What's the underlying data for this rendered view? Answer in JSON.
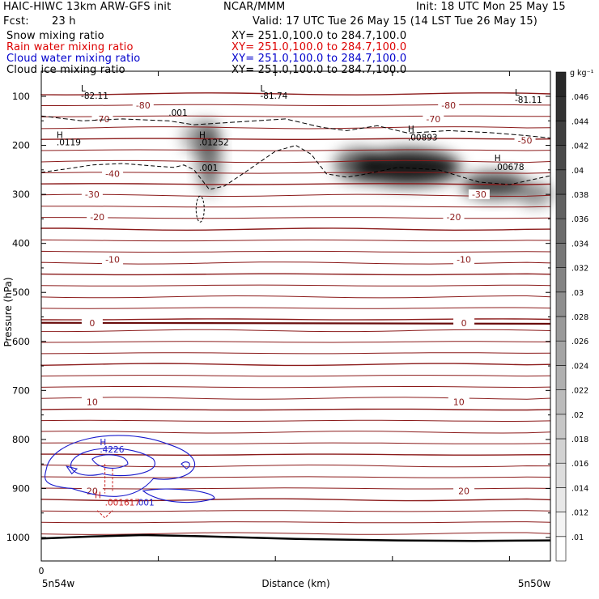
{
  "header": {
    "title_left": "HAIC-HIWC 13km ARW-GFS init",
    "org": "NCAR/MMM",
    "init": "Init: 18 UTC Mon 25 May 15",
    "fcst_label": "Fcst:",
    "fcst_value": "23 h",
    "valid": "Valid: 17 UTC Tue 26 May 15 (14 LST Tue 26 May 15)"
  },
  "fields": [
    {
      "name": "Snow mixing ratio",
      "xy": "XY= 251.0,100.0 to 284.7,100.0",
      "color": "#000000"
    },
    {
      "name": "Rain water mixing ratio",
      "xy": "XY= 251.0,100.0 to 284.7,100.0",
      "color": "#dd0000"
    },
    {
      "name": "Cloud water mixing ratio",
      "xy": "XY= 251.0,100.0 to 284.7,100.0",
      "color": "#0000cc"
    },
    {
      "name": "Cloud ice mixing ratio",
      "xy": "XY= 251.0,100.0 to 284.7,100.0",
      "color": "#000000"
    }
  ],
  "colors": {
    "temp_contour": "#8b1a1a",
    "cloud_water": "#1a1acc",
    "rain": "#cc2222",
    "snow_ice": "#000000"
  },
  "chart_data": {
    "type": "contour",
    "ylabel": "Pressure (hPa)",
    "xlabel": "Distance (km)",
    "x_start_label": "5n54w",
    "x_end_label": "5n50w",
    "x_zero_label": "0",
    "y_ticks": [
      100,
      200,
      300,
      400,
      500,
      600,
      700,
      800,
      900,
      1000
    ],
    "ylim": [
      1050,
      50
    ],
    "colorbar": {
      "unit": "g kg⁻¹",
      "levels": [
        ".01",
        ".012",
        ".014",
        ".016",
        ".018",
        ".02",
        ".022",
        ".024",
        ".026",
        ".028",
        ".03",
        ".032",
        ".034",
        ".036",
        ".038",
        ".04",
        ".042",
        ".044",
        ".046"
      ]
    },
    "isotherms": [
      {
        "level": -80,
        "p": 118,
        "label": "-80"
      },
      {
        "level": -70,
        "p": 146,
        "label": "-70"
      },
      {
        "level": -50,
        "p": 190,
        "label": "-50"
      },
      {
        "level": -40,
        "p": 258,
        "label": "-40"
      },
      {
        "level": -30,
        "p": 300,
        "label": "-30"
      },
      {
        "level": -20,
        "p": 346,
        "label": "-20"
      },
      {
        "level": -10,
        "p": 433,
        "label": "-10"
      },
      {
        "level": 0,
        "p": 562,
        "label": "0"
      },
      {
        "level": 10,
        "p": 723,
        "label": "10"
      },
      {
        "level": 20,
        "p": 905,
        "label": "20"
      }
    ],
    "annotations": [
      {
        "text": "L",
        "x": 0.078,
        "p": 90
      },
      {
        "text": "-82.11",
        "x": 0.078,
        "p": 105
      },
      {
        "text": "L",
        "x": 0.43,
        "p": 90
      },
      {
        "text": "-81.74",
        "x": 0.43,
        "p": 105
      },
      {
        "text": "L",
        "x": 0.93,
        "p": 98
      },
      {
        "text": "-81.11",
        "x": 0.93,
        "p": 113
      },
      {
        "text": "H",
        "x": 0.03,
        "p": 185
      },
      {
        "text": ".0119",
        "x": 0.03,
        "p": 200
      },
      {
        "text": "H",
        "x": 0.31,
        "p": 185
      },
      {
        "text": ".01252",
        "x": 0.31,
        "p": 200
      },
      {
        "text": "H",
        "x": 0.72,
        "p": 173
      },
      {
        "text": ".00893",
        "x": 0.72,
        "p": 190
      },
      {
        "text": "H",
        "x": 0.89,
        "p": 232
      },
      {
        "text": ".00678",
        "x": 0.89,
        "p": 250
      },
      {
        "text": ".001",
        "x": 0.25,
        "p": 140
      },
      {
        "text": ".001",
        "x": 0.31,
        "p": 252
      },
      {
        "text": "H",
        "x": 0.115,
        "p": 812
      },
      {
        "text": ".4226",
        "x": 0.115,
        "p": 827
      },
      {
        "text": "H",
        "x": 0.105,
        "p": 920
      },
      {
        "text": ".001617",
        "x": 0.125,
        "p": 935
      },
      {
        "text": ".001",
        "x": 0.185,
        "p": 935
      }
    ]
  }
}
